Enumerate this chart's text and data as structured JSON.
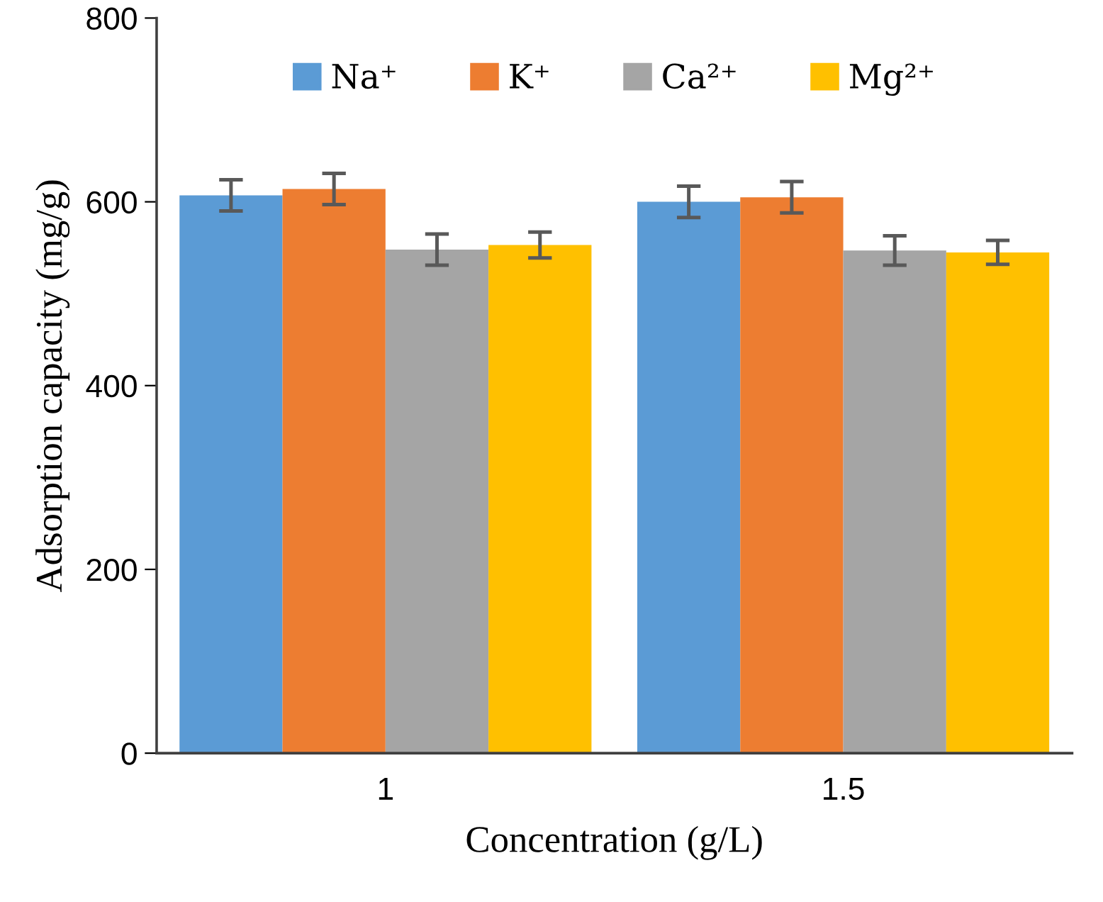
{
  "chart_data": {
    "type": "bar",
    "xlabel": "Concentration (g/L)",
    "ylabel": "Adsorption capacity (mg/g)",
    "categories": [
      "1",
      "1.5"
    ],
    "series": [
      {
        "name": "Na⁺",
        "color": "#5b9bd5",
        "values": [
          607,
          600
        ],
        "errors": [
          17,
          17
        ]
      },
      {
        "name": "K⁺",
        "color": "#ed7d31",
        "values": [
          614,
          605
        ],
        "errors": [
          17,
          17
        ]
      },
      {
        "name": "Ca²⁺",
        "color": "#a5a5a5",
        "values": [
          548,
          547
        ],
        "errors": [
          17,
          16
        ]
      },
      {
        "name": "Mg²⁺",
        "color": "#ffc000",
        "values": [
          553,
          545
        ],
        "errors": [
          14,
          13
        ]
      }
    ],
    "ylim": [
      0,
      800
    ],
    "yticks": [
      0,
      200,
      400,
      600,
      800
    ],
    "grid": false,
    "legend": "top"
  }
}
